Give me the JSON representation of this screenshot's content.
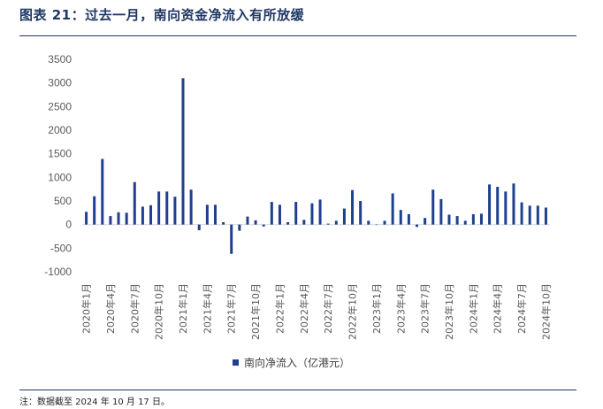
{
  "title": "图表 21：过去一月，南向资金净流入有所放缓",
  "note": "注：数据截至 2024 年 10 月 17 日。",
  "colors": {
    "bar": "#1f3f8f",
    "title": "#1f3864",
    "axis": "#d9d9d9",
    "text": "#595959"
  },
  "chart_data": {
    "type": "bar",
    "title": "",
    "xlabel": "",
    "ylabel": "",
    "ylim": [
      -1000,
      3500
    ],
    "yticks": [
      -1000,
      -500,
      0,
      500,
      1000,
      1500,
      2000,
      2500,
      3000,
      3500
    ],
    "grid": false,
    "legend_position": "bottom",
    "categories": [
      "2020年1月",
      "2020年2月",
      "2020年3月",
      "2020年4月",
      "2020年5月",
      "2020年6月",
      "2020年7月",
      "2020年8月",
      "2020年9月",
      "2020年10月",
      "2020年11月",
      "2020年12月",
      "2021年1月",
      "2021年2月",
      "2021年3月",
      "2021年4月",
      "2021年5月",
      "2021年6月",
      "2021年7月",
      "2021年8月",
      "2021年9月",
      "2021年10月",
      "2021年11月",
      "2021年12月",
      "2022年1月",
      "2022年2月",
      "2022年3月",
      "2022年4月",
      "2022年5月",
      "2022年6月",
      "2022年7月",
      "2022年8月",
      "2022年9月",
      "2022年10月",
      "2022年11月",
      "2022年12月",
      "2023年1月",
      "2023年2月",
      "2023年3月",
      "2023年4月",
      "2023年5月",
      "2023年6月",
      "2023年7月",
      "2023年8月",
      "2023年9月",
      "2023年10月",
      "2023年11月",
      "2023年12月",
      "2024年1月",
      "2024年2月",
      "2024年3月",
      "2024年4月",
      "2024年5月",
      "2024年6月",
      "2024年7月",
      "2024年8月",
      "2024年9月",
      "2024年10月"
    ],
    "xtick_labels": [
      "2020年1月",
      "2020年4月",
      "2020年7月",
      "2020年10月",
      "2021年1月",
      "2021年4月",
      "2021年7月",
      "2021年10月",
      "2022年1月",
      "2022年4月",
      "2022年7月",
      "2022年10月",
      "2023年1月",
      "2023年4月",
      "2023年7月",
      "2023年10月",
      "2024年1月",
      "2024年4月",
      "2024年7月",
      "2024年10月"
    ],
    "series": [
      {
        "name": "南向净流入（亿港元）",
        "values": [
          270,
          600,
          1390,
          180,
          260,
          250,
          900,
          380,
          410,
          700,
          700,
          590,
          3100,
          740,
          -120,
          420,
          420,
          50,
          -620,
          -130,
          170,
          90,
          -40,
          480,
          420,
          50,
          480,
          100,
          450,
          530,
          20,
          80,
          340,
          730,
          500,
          80,
          0,
          80,
          660,
          310,
          220,
          -50,
          140,
          740,
          540,
          210,
          180,
          80,
          220,
          230,
          850,
          800,
          700,
          870,
          470,
          400,
          400,
          360
        ]
      }
    ]
  }
}
